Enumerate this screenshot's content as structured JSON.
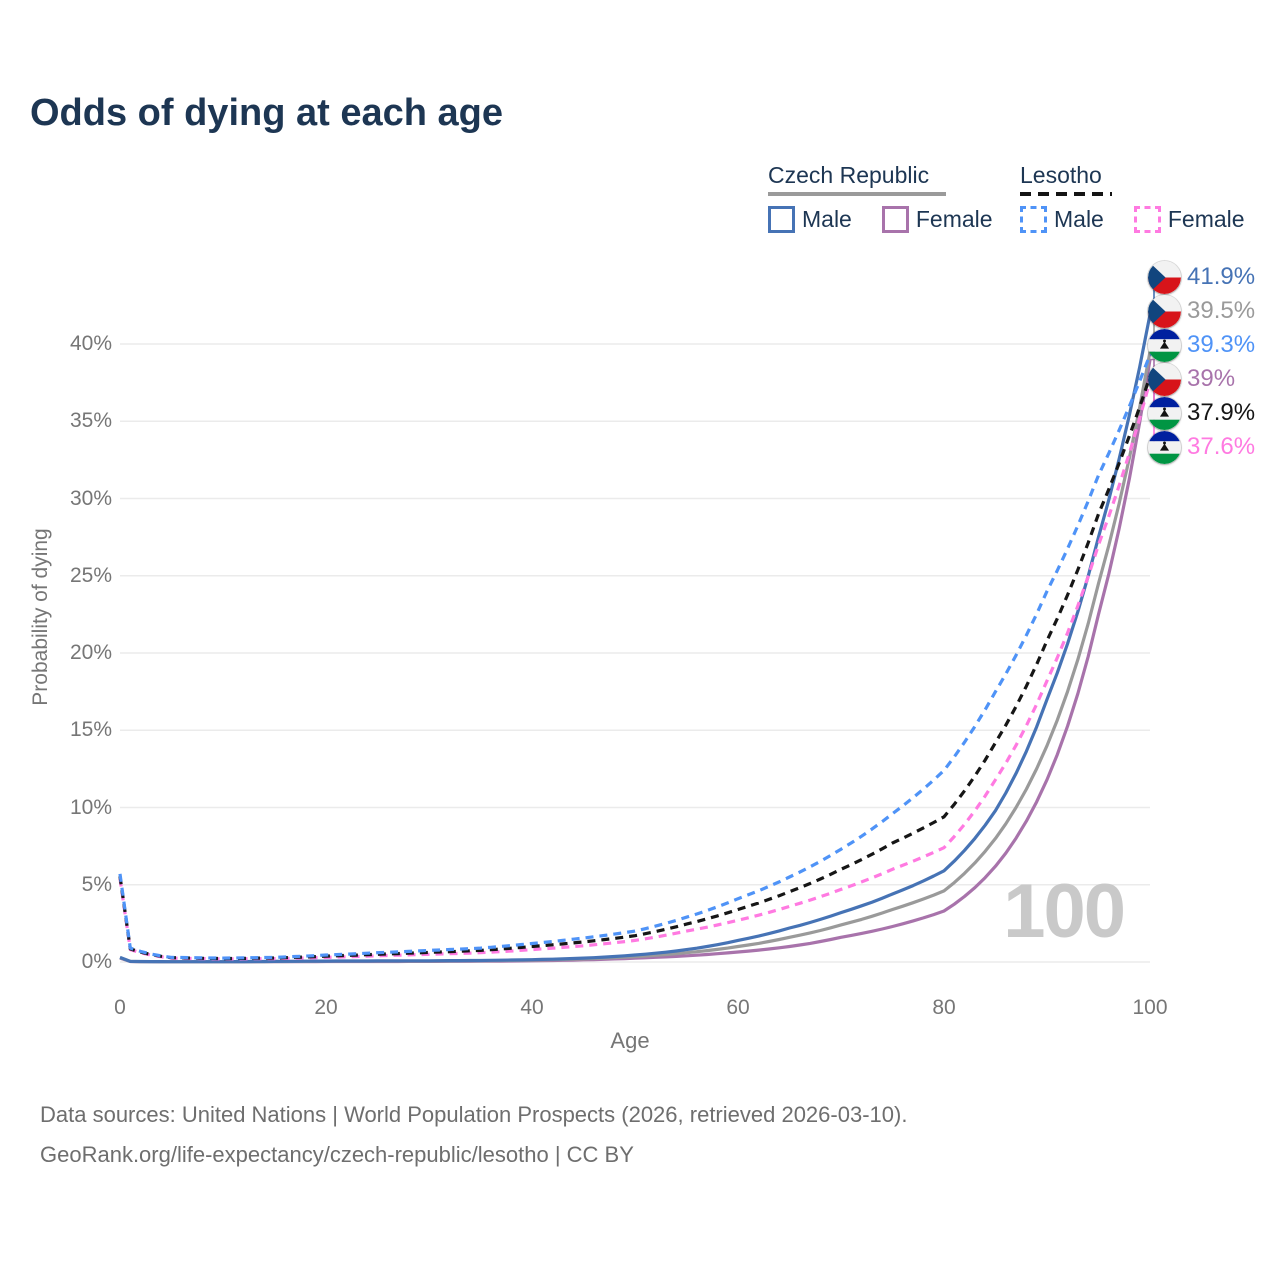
{
  "title": "Odds of dying at each age",
  "legend": {
    "groups": [
      {
        "name": "Czech Republic",
        "line_style": "solid",
        "items": [
          {
            "label": "Male",
            "color": "#4673b5"
          },
          {
            "label": "Female",
            "color": "#a873ab"
          }
        ]
      },
      {
        "name": "Lesotho",
        "line_style": "dashed",
        "items": [
          {
            "label": "Male",
            "color": "#4f93f7"
          },
          {
            "label": "Female",
            "color": "#ff7ae1"
          }
        ]
      }
    ]
  },
  "watermark_age": "100",
  "footer": {
    "line1": "Data sources: United Nations | World Population Prospects (2026, retrieved 2026-03-10).",
    "line2": "GeoRank.org/life-expectancy/czech-republic/lesotho | CC BY"
  },
  "end_labels": [
    {
      "label": "41.9%",
      "series": "Czech Republic Male",
      "flag": "cz",
      "color": "#4673b5"
    },
    {
      "label": "39.5%",
      "series": "Czech Republic Both sexes",
      "flag": "cz",
      "color": "#9a9a9a"
    },
    {
      "label": "39.3%",
      "series": "Lesotho Male",
      "flag": "ls",
      "color": "#4f93f7"
    },
    {
      "label": "39%",
      "series": "Czech Republic Female",
      "flag": "cz",
      "color": "#a873ab"
    },
    {
      "label": "37.9%",
      "series": "Lesotho Both sexes",
      "flag": "ls",
      "color": "#161616"
    },
    {
      "label": "37.6%",
      "series": "Lesotho Female",
      "flag": "ls",
      "color": "#ff7ae1"
    }
  ],
  "chart_data": {
    "type": "line",
    "title": "Odds of dying at each age",
    "xlabel": "Age",
    "ylabel": "Probability of dying",
    "x_ticks": [
      0,
      20,
      40,
      60,
      80,
      100
    ],
    "y_ticks_pct": [
      0,
      5,
      10,
      15,
      20,
      25,
      30,
      35,
      40
    ],
    "xlim": [
      0,
      100
    ],
    "ylim_pct": [
      0,
      43
    ],
    "grid": "horizontal-only",
    "legend_position": "top-right",
    "ages": [
      0,
      1,
      5,
      10,
      15,
      20,
      25,
      30,
      35,
      40,
      45,
      50,
      55,
      60,
      65,
      70,
      75,
      80,
      85,
      90,
      95,
      100
    ],
    "series": [
      {
        "name": "Czech Republic Female",
        "country": "Czech Republic",
        "sex": "Female",
        "style": "solid",
        "color": "#a873ab",
        "end_value_pct": 39.0,
        "values_pct": [
          0.25,
          0.03,
          0.01,
          0.01,
          0.02,
          0.03,
          0.03,
          0.04,
          0.05,
          0.08,
          0.14,
          0.25,
          0.4,
          0.65,
          1.0,
          1.6,
          2.3,
          3.3,
          6.2,
          11.8,
          22.5,
          39.0
        ]
      },
      {
        "name": "Czech Republic Both sexes",
        "country": "Czech Republic",
        "sex": "Both sexes",
        "style": "solid",
        "color": "#9a9a9a",
        "end_value_pct": 39.5,
        "values_pct": [
          0.28,
          0.04,
          0.01,
          0.01,
          0.03,
          0.05,
          0.05,
          0.06,
          0.08,
          0.12,
          0.2,
          0.35,
          0.6,
          1.0,
          1.6,
          2.4,
          3.4,
          4.6,
          8.0,
          14.0,
          24.5,
          39.5
        ]
      },
      {
        "name": "Czech Republic Male",
        "country": "Czech Republic",
        "sex": "Male",
        "style": "solid",
        "color": "#4673b5",
        "end_value_pct": 41.9,
        "values_pct": [
          0.3,
          0.04,
          0.02,
          0.02,
          0.04,
          0.06,
          0.07,
          0.08,
          0.1,
          0.15,
          0.25,
          0.45,
          0.8,
          1.4,
          2.2,
          3.2,
          4.4,
          5.9,
          9.8,
          17.0,
          27.5,
          41.9
        ]
      },
      {
        "name": "Lesotho Female",
        "country": "Lesotho",
        "sex": "Female",
        "style": "dashed",
        "color": "#ff7ae1",
        "end_value_pct": 37.6,
        "values_pct": [
          5.4,
          0.8,
          0.25,
          0.2,
          0.22,
          0.3,
          0.4,
          0.5,
          0.6,
          0.8,
          1.05,
          1.4,
          2.0,
          2.7,
          3.6,
          4.7,
          6.0,
          7.4,
          11.8,
          18.2,
          27.0,
          37.6
        ]
      },
      {
        "name": "Lesotho Both sexes",
        "country": "Lesotho",
        "sex": "Both sexes",
        "style": "dashed",
        "color": "#161616",
        "end_value_pct": 37.9,
        "values_pct": [
          5.55,
          0.85,
          0.28,
          0.22,
          0.26,
          0.38,
          0.5,
          0.62,
          0.75,
          1.0,
          1.3,
          1.7,
          2.45,
          3.4,
          4.55,
          6.0,
          7.7,
          9.4,
          14.2,
          20.8,
          29.0,
          37.9
        ]
      },
      {
        "name": "Lesotho Male",
        "country": "Lesotho",
        "sex": "Male",
        "style": "dashed",
        "color": "#4f93f7",
        "end_value_pct": 39.3,
        "values_pct": [
          5.7,
          0.9,
          0.3,
          0.25,
          0.3,
          0.45,
          0.6,
          0.75,
          0.9,
          1.2,
          1.55,
          2.0,
          2.9,
          4.1,
          5.5,
          7.3,
          9.6,
          12.4,
          17.5,
          24.0,
          31.5,
          39.3
        ]
      }
    ]
  }
}
